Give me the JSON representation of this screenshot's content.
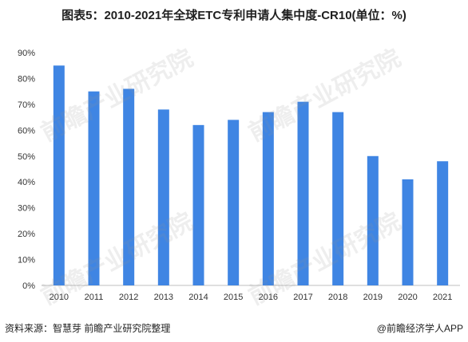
{
  "chart_data": {
    "type": "bar",
    "title": "图表5：2010-2021年全球ETC专利申请人集中度-CR10(单位：%)",
    "categories": [
      "2010",
      "2011",
      "2012",
      "2013",
      "2014",
      "2015",
      "2016",
      "2017",
      "2018",
      "2019",
      "2020",
      "2021"
    ],
    "values": [
      85,
      75,
      76,
      68,
      62,
      64,
      67,
      71,
      67,
      50,
      41,
      48
    ],
    "ylim": [
      0,
      90
    ],
    "yticks": [
      "0%",
      "10%",
      "20%",
      "30%",
      "40%",
      "50%",
      "60%",
      "70%",
      "80%",
      "90%"
    ],
    "bar_color": "#3f85e3",
    "grid": false,
    "legend": null
  },
  "footer": {
    "source": "资料来源：智慧芽 前瞻产业研究院整理",
    "copyright": "@前瞻经济学人APP"
  },
  "watermark": {
    "text": "前瞻产业研究院"
  }
}
